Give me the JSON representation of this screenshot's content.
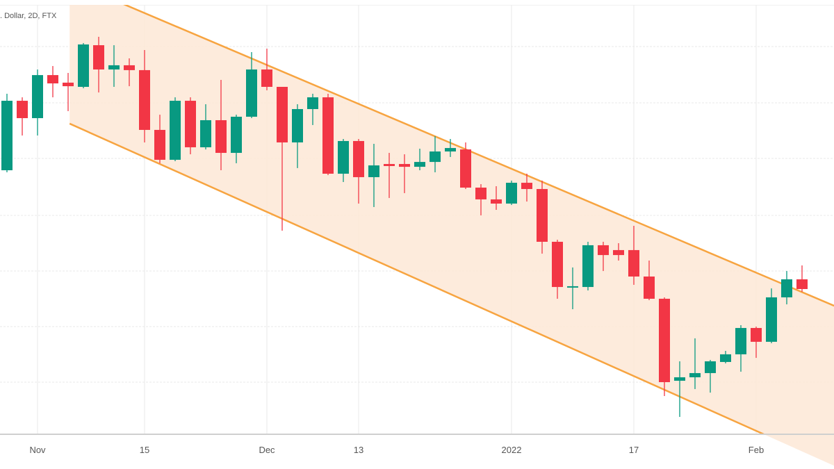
{
  "chart_data": {
    "type": "candlestick",
    "legend_text": ". Dollar, 2D, FTX",
    "interval": "2D",
    "x_tick_labels": [
      {
        "label": "Nov",
        "bar": 2
      },
      {
        "label": "15",
        "bar": 9
      },
      {
        "label": "Dec",
        "bar": 17
      },
      {
        "label": "13",
        "bar": 23
      },
      {
        "label": "2022",
        "bar": 33
      },
      {
        "label": "17",
        "bar": 41
      },
      {
        "label": "Feb",
        "bar": 49
      }
    ],
    "y_axis_visible": false,
    "y_range_estimated": [
      31000,
      71000
    ],
    "grid": true,
    "colors": {
      "up": "#089981",
      "down": "#f23645",
      "channel_line": "#f7a440",
      "channel_fill": "#fde8d6",
      "grid": "#e9e9e9"
    },
    "candles_ohlc": [
      [
        55820,
        62910,
        55630,
        62260
      ],
      [
        62260,
        62580,
        59040,
        60650
      ],
      [
        60650,
        65160,
        59040,
        64640
      ],
      [
        64640,
        65480,
        62580,
        63870
      ],
      [
        63940,
        64840,
        61300,
        63610
      ],
      [
        63550,
        67610,
        63420,
        67480
      ],
      [
        67410,
        68190,
        63030,
        65160
      ],
      [
        65160,
        67410,
        63550,
        65550
      ],
      [
        65550,
        66190,
        63610,
        65100
      ],
      [
        65100,
        66960,
        58400,
        59560
      ],
      [
        59560,
        60970,
        56470,
        56790
      ],
      [
        56790,
        62580,
        56660,
        62260
      ],
      [
        62260,
        62580,
        57300,
        57950
      ],
      [
        57950,
        61940,
        57750,
        60460
      ],
      [
        60460,
        64190,
        55820,
        57430
      ],
      [
        57430,
        60970,
        56470,
        60780
      ],
      [
        60780,
        66770,
        60650,
        65160
      ],
      [
        65160,
        67090,
        63230,
        63550
      ],
      [
        63550,
        63550,
        50220,
        58400
      ],
      [
        58400,
        61940,
        56020,
        61490
      ],
      [
        61490,
        62910,
        60010,
        62580
      ],
      [
        62580,
        62910,
        55370,
        55500
      ],
      [
        55500,
        58720,
        54730,
        58530
      ],
      [
        58530,
        58720,
        52730,
        55180
      ],
      [
        55180,
        58270,
        52410,
        56270
      ],
      [
        56400,
        57430,
        53250,
        56210
      ],
      [
        56400,
        57300,
        53700,
        56140
      ],
      [
        56140,
        57820,
        55820,
        56590
      ],
      [
        56590,
        58980,
        55630,
        57560
      ],
      [
        57560,
        58720,
        57050,
        57880
      ],
      [
        57750,
        58400,
        54080,
        54210
      ],
      [
        54210,
        54530,
        51640,
        53120
      ],
      [
        53120,
        54340,
        52150,
        52730
      ],
      [
        52730,
        54860,
        52600,
        54660
      ],
      [
        54660,
        55500,
        52920,
        54080
      ],
      [
        54080,
        54860,
        48090,
        49190
      ],
      [
        49190,
        49380,
        43910,
        45000
      ],
      [
        44940,
        46810,
        42940,
        45070
      ],
      [
        45000,
        49190,
        44680,
        48870
      ],
      [
        48870,
        49190,
        46480,
        47960
      ],
      [
        48420,
        49060,
        47450,
        47960
      ],
      [
        48420,
        50670,
        45200,
        45970
      ],
      [
        45970,
        47450,
        43780,
        43910
      ],
      [
        43910,
        44040,
        34890,
        36180
      ],
      [
        36310,
        38110,
        32960,
        36630
      ],
      [
        36630,
        40240,
        35540,
        37020
      ],
      [
        37020,
        38240,
        35210,
        38110
      ],
      [
        38050,
        39080,
        37920,
        38760
      ],
      [
        38760,
        41460,
        37150,
        41200
      ],
      [
        41200,
        41330,
        38430,
        39920
      ],
      [
        39920,
        44870,
        39790,
        44040
      ],
      [
        44040,
        46480,
        43390,
        45710
      ],
      [
        45710,
        47000,
        44550,
        44810
      ]
    ],
    "descending_channel": {
      "upper": [
        {
          "bar": 4.1,
          "price": 73340
        },
        {
          "bar": 54.1,
          "price": 43260
        }
      ],
      "lower": [
        {
          "bar": 4.1,
          "price": 60140
        },
        {
          "bar": 49.5,
          "price": 31350
        }
      ]
    }
  }
}
